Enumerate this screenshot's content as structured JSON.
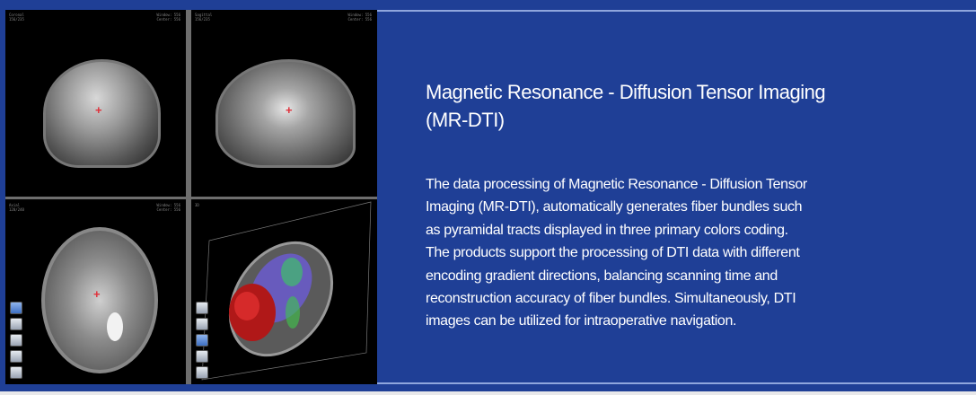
{
  "colors": {
    "background": "#1f3f96",
    "rule": "#8fa6dd",
    "crosshair": "#e0303a"
  },
  "viewer": {
    "views": [
      {
        "name": "Coronal",
        "slice": "156/235",
        "window": "Window: 556",
        "center": "Center: 556"
      },
      {
        "name": "Sagittal",
        "slice": "156/235",
        "window": "Window: 556",
        "center": "Center: 556"
      },
      {
        "name": "Axial",
        "slice": "120/240",
        "window": "Window: 556",
        "center": "Center: 556"
      },
      {
        "name": "3D"
      }
    ]
  },
  "content": {
    "title_lines": [
      "Magnetic Resonance - Diffusion Tensor Imaging",
      "(MR-DTI)"
    ],
    "body_lines": [
      "The data processing of Magnetic Resonance - Diffusion Tensor",
      "Imaging (MR-DTI), automatically generates fiber bundles such",
      "as pyramidal tracts displayed in three primary colors coding.",
      "The products support the processing of DTI data with different",
      "encoding gradient directions, balancing scanning time and",
      "reconstruction accuracy of fiber bundles. Simultaneously, DTI",
      "images can be utilized for intraoperative navigation."
    ]
  }
}
